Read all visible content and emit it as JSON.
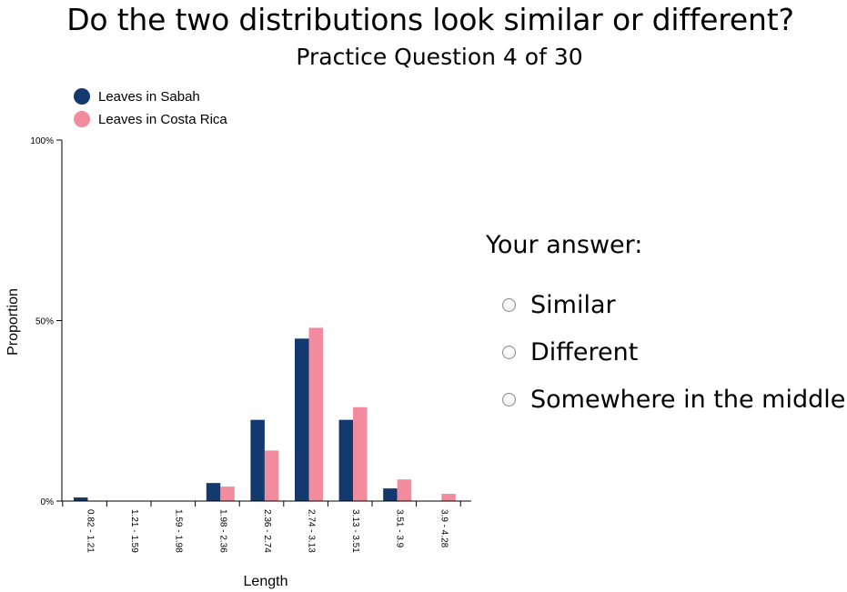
{
  "question": {
    "title": "Do the two distributions look similar or different?",
    "subtitle": "Practice Question 4 of 30"
  },
  "answer": {
    "label": "Your answer:",
    "options": [
      "Similar",
      "Different",
      "Somewhere in the middle"
    ]
  },
  "chart_data": {
    "type": "bar",
    "xlabel": "Length",
    "ylabel": "Proportion",
    "ylim": [
      0,
      100
    ],
    "yticks": [
      0,
      50,
      100
    ],
    "ytick_labels": [
      "0%",
      "50%",
      "100%"
    ],
    "categories": [
      "0.82 - 1.21",
      "1.21 - 1.59",
      "1.59 - 1.98",
      "1.98 - 2.36",
      "2.36 - 2.74",
      "2.74 - 3.13",
      "3.13 - 3.51",
      "3.51 - 3.9",
      "3.9 - 4.28"
    ],
    "series": [
      {
        "name": "Leaves in Sabah",
        "color": "#14396f",
        "values": [
          1,
          0,
          0,
          5,
          22.5,
          45,
          22.5,
          3.5,
          0
        ]
      },
      {
        "name": "Leaves in Costa Rica",
        "color": "#f38b9f",
        "values": [
          0,
          0,
          0,
          4,
          14,
          48,
          26,
          6,
          2
        ]
      }
    ],
    "legend_position": "top-left",
    "grid": false
  }
}
